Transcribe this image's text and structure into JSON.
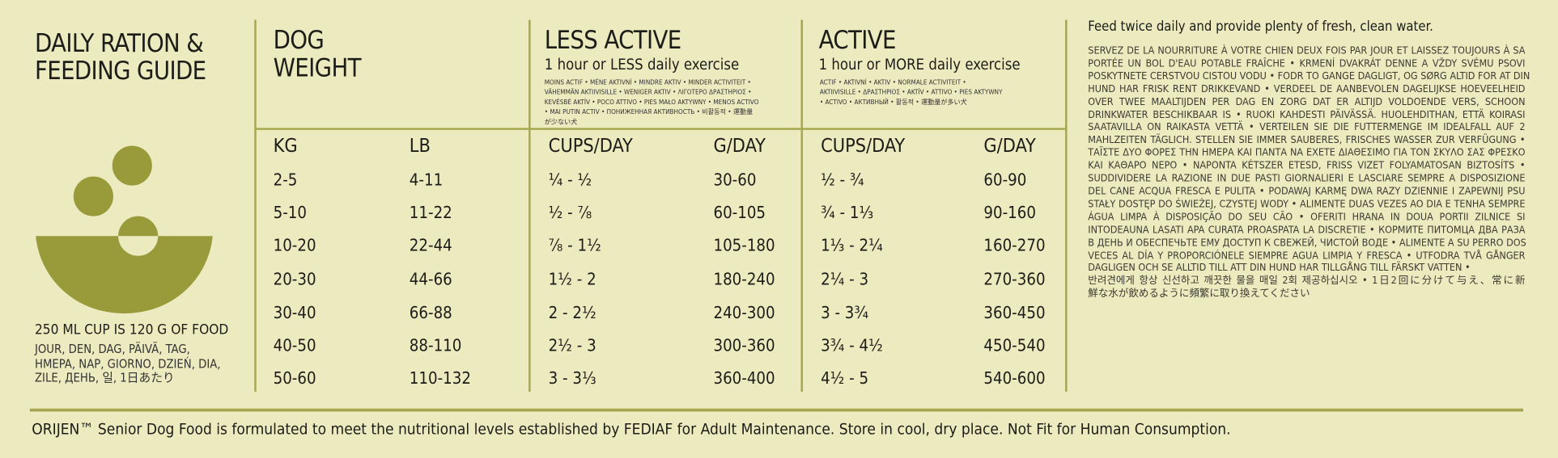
{
  "guide": {
    "title_lines": [
      "DAILY RATION &",
      "FEEDING GUIDE"
    ],
    "cup_note": "250 ML CUP IS 120 G OF FOOD",
    "per_day_lines": [
      "JOUR, DEN, DAG, PÄIVÄ, TAG,",
      "HMEPA, NAP, GIORNO, DZIEŃ, DIA,",
      "ZILE, ДЕНЬ, 일, 1日あたり"
    ]
  },
  "table": {
    "weight_title_lines": [
      "DOG",
      "WEIGHT"
    ],
    "less_active": {
      "title": "LESS ACTIVE",
      "subtitle": "1 hour or LESS daily exercise",
      "translations": [
        "MOINS ACTIF • MÉNE AKTIVNÍ • MINDRE AKTIV • MINDER ACTIVITEIT •",
        "VÄHEMMÄN AKTIIVISILLE • WENIGER AKTIV • ΛΙΓΟΤΕΡΟ ΔΡΑΣΤΗΡΙΟΣ •",
        "KEVÉSBÉ AKTÍV • POCO ATTIVO • PIES MAŁO AKTYWNY • MENOS ACTIVO",
        "• MAI PUTIN ACTIV • ПОНИЖЕННАЯ АКТИВНОСТЬ • 비활동적 • 運動量",
        "が少ない犬"
      ]
    },
    "active": {
      "title": "ACTIVE",
      "subtitle": "1 hour or MORE daily exercise",
      "translations": [
        "ACTIF • AKTIVNÍ • AKTIV • NORMALE ACTIVITEIT •",
        "AKTIIVISILLE • ΔΡΑΣΤΗΡΙΟΣ • AKTÍV • ATTIVO • PIES AKTYWNY",
        "• ACTIVO • АКТИВНЫЙ • 활동적 • 運動量が多い犬"
      ]
    },
    "columns": [
      "KG",
      "LB",
      "CUPS/DAY",
      "G/DAY",
      "CUPS/DAY",
      "G/DAY"
    ],
    "rows": [
      [
        "2-5",
        "4-11",
        "¼ - ½",
        "30-60",
        "½ - ¾",
        "60-90"
      ],
      [
        "5-10",
        "11-22",
        "½ - ⅞",
        "60-105",
        "¾ - 1⅓",
        "90-160"
      ],
      [
        "10-20",
        "22-44",
        "⅞ - 1½",
        "105-180",
        "1⅓ - 2¼",
        "160-270"
      ],
      [
        "20-30",
        "44-66",
        "1½ - 2",
        "180-240",
        "2¼ - 3",
        "270-360"
      ],
      [
        "30-40",
        "66-88",
        "2 - 2½",
        "240-300",
        "3 - 3¾",
        "360-450"
      ],
      [
        "40-50",
        "88-110",
        "2½ - 3",
        "300-360",
        "3¾ - 4½",
        "450-540"
      ],
      [
        "50-60",
        "110-132",
        "3 - 3⅓",
        "360-400",
        "4½ - 5",
        "540-600"
      ]
    ]
  },
  "instructions": {
    "heading": "Feed twice daily and provide plenty of fresh, clean water.",
    "lines": [
      "SERVEZ DE LA NOURRITURE À VOTRE CHIEN DEUX FOIS PAR JOUR ET LAISSEZ TOUJOURS À SA",
      "PORTÉE UN BOL D'EAU POTABLE FRAÎCHE • KRMENÍ DVAKRÁT DENNE A VŽDY SVÉMU PSOVI",
      "POSKYTNETE CERSTVOU CISTOU VODU • FODR TO GANGE DAGLIGT, OG SØRG ALTID FOR AT DIN",
      "HUND HAR FRISK RENT DRIKKEVAND • VERDEEL DE AANBEVOLEN DAGELIJKSE HOEVEELHEID",
      "OVER TWEE MAALTIJDEN PER DAG EN ZORG DAT ER ALTIJD VOLDOENDE VERS, SCHOON",
      "DRINKWATER BESCHIKBAAR IS • RUOKI KAHDESTI PÄIVÄSSÄ. HUOLEHDITHAN, ETTÄ KOIRASI",
      "SAATAVILLA ON RAIKASTA VETTÄ • VERTEILEN SIE DIE FUTTERMENGE IM IDEALFALL AUF 2",
      "MAHLZEITEN TÄGLICH. STELLEN SIE IMMER SAUBERES, FRISCHES WASSER ZUR VERFÜGUNG •",
      "ΤΑΪΣΤΕ ΔΥΟ ΦΟΡΕΣ ΤΗΝ ΗΜΕΡΑ ΚΑΙ ΠΑΝΤΑ ΝΑ ΕΧΕΤΕ ΔΙΑΘΕΣΙΜΟ ΓΙΑ ΤΟΝ ΣΚΥΛΟ ΣΑΣ ΦΡΕΣΚΟ",
      "ΚΑΙ ΚΑΘΑΡΟ ΝΕΡΟ • NAPONTA KÉTSZER ETESD, FRISS VIZET FOLYAMATOSAN BIZTOSÍTS •",
      "SUDDIVIDERE LA RAZIONE IN DUE PASTI GIORNALIERI E LASCIARE SEMPRE A DISPOSIZIONE",
      "DEL CANE ACQUA FRESCA E PULITA • PODAWAJ KARMĘ DWA RAZY DZIENNIE I ZAPEWNIJ PSU",
      "STAŁY DOSTĘP DO ŚWIEŻEJ, CZYSTEJ WODY • ALIMENTE DUAS VEZES AO DIA E TENHA SEMPRE",
      "ÁGUA LIMPA À DISPOSIÇÃO DO SEU CÃO • OFERITI HRANA IN DOUA PORTII ZILNICE SI",
      "INTODEAUNA LASATI APA CURATA PROASPATA LA DISCRETIE • КОРМИТЕ ПИТОМЦА ДВА РАЗА",
      "В ДЕНЬ И ОБЕСПЕЧЬТЕ ЕМУ ДОСТУП К СВЕЖЕЙ, ЧИСТОЙ ВОДЕ • ALIMENTE A SU PERRO DOS",
      "VECES AL DÍA Y PROPORCIÓNELE SIEMPRE AGUA LIMPIA Y FRESCA • UTFODRA TVÅ GÅNGER",
      "DAGLIGEN OCH SE ALLTID TILL ATT DIN HUND HAR TILLGÅNG TILL FÄRSKT VATTEN •",
      "반려견에게 항상 신선하고 깨끗한 물을 매일 2회 제공하십시오 • 1日2回に分けて与え、常に新",
      "鮮な水が飲めるように頻繁に取り換えてください"
    ]
  },
  "footer": "ORIJEN™ Senior Dog Food is formulated to meet the nutritional levels established by FEDIAF for Adult Maintenance. Store in cool, dry place. Not Fit for Human Consumption."
}
